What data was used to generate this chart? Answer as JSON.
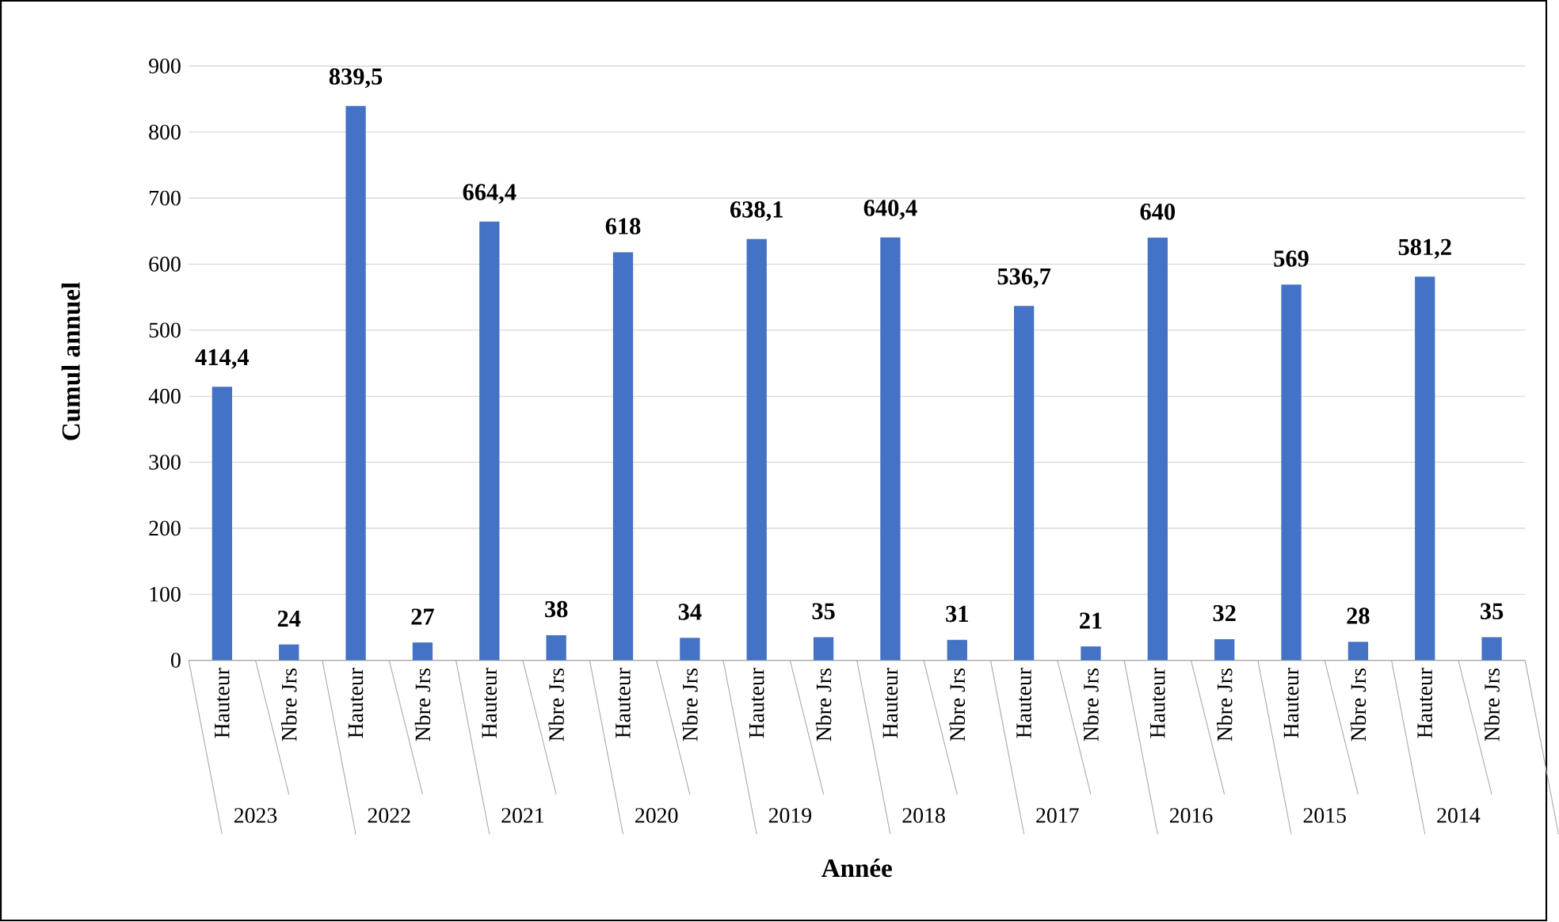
{
  "chart_data": {
    "type": "bar",
    "xlabel": "Année",
    "ylabel": "Cumul annuel",
    "categories": [
      "Hauteur",
      "Nbre Jrs",
      "Hauteur",
      "Nbre Jrs",
      "Hauteur",
      "Nbre Jrs",
      "Hauteur",
      "Nbre Jrs",
      "Hauteur",
      "Nbre Jrs",
      "Hauteur",
      "Nbre Jrs",
      "Hauteur",
      "Nbre Jrs",
      "Hauteur",
      "Nbre Jrs",
      "Hauteur",
      "Nbre Jrs",
      "Hauteur",
      "Nbre Jrs"
    ],
    "values": [
      414.4,
      24,
      839.5,
      27,
      664.4,
      38,
      618,
      34,
      638.1,
      35,
      640.4,
      31,
      536.7,
      21,
      640,
      32,
      569,
      28,
      581.2,
      35
    ],
    "value_labels": [
      "414,4",
      "24",
      "839,5",
      "27",
      "664,4",
      "38",
      "618",
      "34",
      "638,1",
      "35",
      "640,4",
      "31",
      "536,7",
      "21",
      "640",
      "32",
      "569",
      "28",
      "581,2",
      "35"
    ],
    "color": "#4472c4",
    "ylim": [
      0,
      900
    ],
    "yticks": [
      0,
      100,
      200,
      300,
      400,
      500,
      600,
      700,
      800,
      900
    ],
    "grid": "y",
    "annotations": [
      "2023",
      "2022",
      "2021",
      "2020",
      "2019",
      "2018",
      "2017",
      "2016",
      "2015",
      "2014"
    ]
  }
}
